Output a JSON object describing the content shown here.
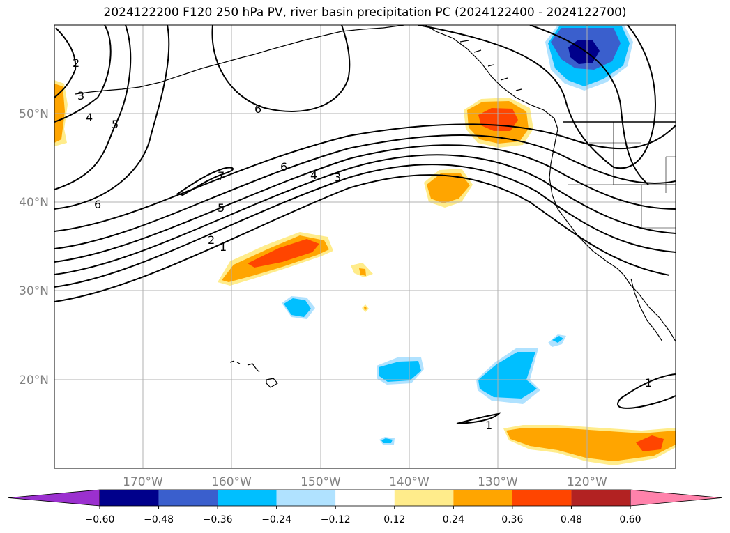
{
  "title": "2024122200 F120 250 hPa PV, river basin precipitation PC (2024122400 - 2024122700)",
  "map": {
    "lon_range": [
      -180,
      -110
    ],
    "lat_range": [
      10,
      60
    ],
    "lon_ticks": [
      {
        "value": -170,
        "label": "170°W"
      },
      {
        "value": -160,
        "label": "160°W"
      },
      {
        "value": -150,
        "label": "150°W"
      },
      {
        "value": -140,
        "label": "140°W"
      },
      {
        "value": -130,
        "label": "130°W"
      },
      {
        "value": -120,
        "label": "120°W"
      }
    ],
    "lat_ticks": [
      {
        "value": 20,
        "label": "20°N"
      },
      {
        "value": 30,
        "label": "30°N"
      },
      {
        "value": 40,
        "label": "40°N"
      },
      {
        "value": 50,
        "label": "50°N"
      }
    ],
    "grid": true
  },
  "pv_contour_labels": [
    "2",
    "3",
    "4",
    "5",
    "6",
    "6",
    "7",
    "6",
    "5",
    "4",
    "3",
    "2",
    "1",
    "1",
    "1"
  ],
  "colorbar": {
    "orientation": "horizontal",
    "extend": "both",
    "colors": [
      "#9b30cf",
      "#00008b",
      "#3a5fcd",
      "#00bfff",
      "#b0e2ff",
      "#ffffff",
      "#ffec8b",
      "#ffa500",
      "#ff4500",
      "#b22222",
      "#ff82ab"
    ],
    "tick_labels": [
      "−0.60",
      "−0.48",
      "−0.36",
      "−0.24",
      "−0.12",
      "0.12",
      "0.24",
      "0.36",
      "0.48",
      "0.60"
    ]
  },
  "colors": {
    "grid": "#b0b0b0",
    "tick_label": "#808080",
    "contour": "#000000"
  }
}
